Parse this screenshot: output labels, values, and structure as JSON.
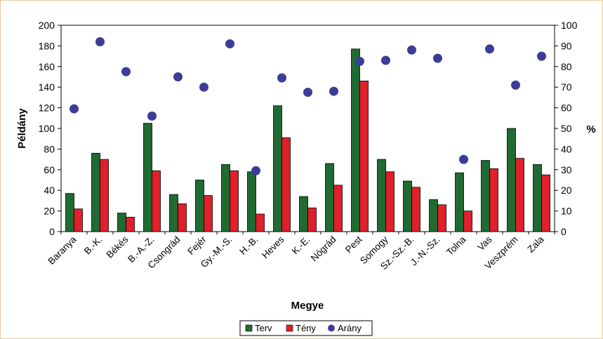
{
  "chart_data": {
    "type": "bar",
    "categories": [
      "Baranya",
      "B.-K.",
      "Békés",
      "B.-A.-Z.",
      "Csongrád",
      "Fejér",
      "Gy.-M.-S.",
      "H.-B.",
      "Heves",
      "K.-E.",
      "Nógrád",
      "Pest",
      "Somogy",
      "Sz.-Sz.-B.",
      "J.-N.-Sz.",
      "Tolna",
      "Vas",
      "Veszprém",
      "Zala"
    ],
    "series": [
      {
        "name": "Terv",
        "type": "bar",
        "axis": "left",
        "color": "#1f6b32",
        "values": [
          37,
          76,
          18,
          105,
          36,
          50,
          65,
          58,
          122,
          34,
          66,
          177,
          70,
          49,
          31,
          57,
          69,
          100,
          65
        ]
      },
      {
        "name": "Tény",
        "type": "bar",
        "axis": "left",
        "color": "#e0202a",
        "values": [
          22,
          70,
          14,
          59,
          27,
          35,
          59,
          17,
          91,
          23,
          45,
          146,
          58,
          43,
          26,
          20,
          61,
          71,
          55
        ]
      },
      {
        "name": "Arány",
        "type": "scatter",
        "axis": "right",
        "color": "#3c3c99",
        "values": [
          59.5,
          92,
          77.5,
          56,
          75,
          70,
          91,
          29.5,
          74.5,
          67.5,
          68,
          82.5,
          83,
          88,
          84,
          35,
          88.5,
          71,
          85
        ]
      }
    ],
    "xlabel": "Megye",
    "ylabel": "Példány",
    "y2label": "%",
    "ylim": [
      0,
      200
    ],
    "y2lim": [
      0,
      100
    ],
    "yticks": [
      0,
      20,
      40,
      60,
      80,
      100,
      120,
      140,
      160,
      180,
      200
    ],
    "y2ticks": [
      0,
      10,
      20,
      30,
      40,
      50,
      60,
      70,
      80,
      90,
      100
    ],
    "grid": false,
    "legend": "bottom"
  }
}
